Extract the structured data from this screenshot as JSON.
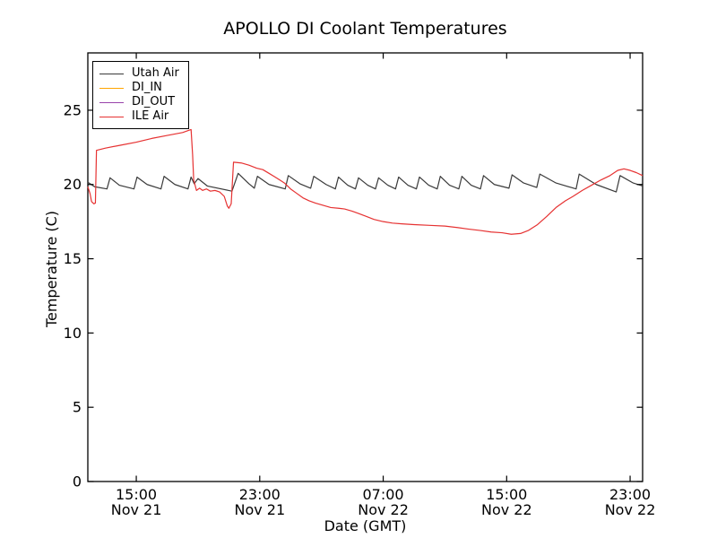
{
  "figure": {
    "background_color": "#ffffff",
    "axes_border_color": "#000000",
    "text_color": "#000000"
  },
  "chart_data": {
    "type": "line",
    "title": "APOLLO DI Coolant Temperatures",
    "xlabel": "Date (GMT)",
    "ylabel": "Temperature (C)",
    "grid": false,
    "legend_position": "upper left",
    "x_unit": "hours from Nov 21 00:00 GMT",
    "xlim": [
      11.86,
      47.81
    ],
    "ylim": [
      0,
      28.86
    ],
    "yticks": [
      0,
      5,
      10,
      15,
      20,
      25
    ],
    "xticks": [
      {
        "t": 15,
        "time": "15:00",
        "date": "Nov 21"
      },
      {
        "t": 23,
        "time": "23:00",
        "date": "Nov 21"
      },
      {
        "t": 31,
        "time": "07:00",
        "date": "Nov 22"
      },
      {
        "t": 39,
        "time": "15:00",
        "date": "Nov 22"
      },
      {
        "t": 47,
        "time": "23:00",
        "date": "Nov 22"
      }
    ],
    "series": [
      {
        "name": "Utah Air",
        "color": "#3a3a3a",
        "points": [
          [
            11.86,
            20.15
          ],
          [
            12.3,
            19.85
          ],
          [
            13.1,
            19.7
          ],
          [
            13.3,
            20.45
          ],
          [
            13.9,
            19.95
          ],
          [
            14.85,
            19.7
          ],
          [
            15.05,
            20.5
          ],
          [
            15.7,
            20.0
          ],
          [
            16.6,
            19.7
          ],
          [
            16.8,
            20.55
          ],
          [
            17.5,
            20.0
          ],
          [
            18.35,
            19.7
          ],
          [
            18.55,
            20.5
          ],
          [
            18.75,
            20.05
          ],
          [
            19.0,
            20.4
          ],
          [
            19.6,
            19.9
          ],
          [
            21.2,
            19.55
          ],
          [
            21.6,
            20.75
          ],
          [
            22.3,
            20.05
          ],
          [
            22.65,
            19.75
          ],
          [
            22.85,
            20.55
          ],
          [
            23.6,
            20.0
          ],
          [
            24.65,
            19.7
          ],
          [
            24.85,
            20.6
          ],
          [
            25.6,
            20.05
          ],
          [
            26.3,
            19.75
          ],
          [
            26.5,
            20.55
          ],
          [
            27.3,
            20.0
          ],
          [
            27.9,
            19.7
          ],
          [
            28.1,
            20.5
          ],
          [
            28.7,
            19.95
          ],
          [
            29.2,
            19.7
          ],
          [
            29.4,
            20.45
          ],
          [
            30.0,
            19.95
          ],
          [
            30.5,
            19.7
          ],
          [
            30.7,
            20.45
          ],
          [
            31.3,
            19.95
          ],
          [
            31.8,
            19.7
          ],
          [
            32.0,
            20.5
          ],
          [
            32.6,
            19.95
          ],
          [
            33.15,
            19.7
          ],
          [
            33.35,
            20.5
          ],
          [
            33.95,
            19.95
          ],
          [
            34.5,
            19.7
          ],
          [
            34.7,
            20.55
          ],
          [
            35.3,
            19.95
          ],
          [
            35.9,
            19.7
          ],
          [
            36.1,
            20.55
          ],
          [
            36.7,
            19.95
          ],
          [
            37.3,
            19.7
          ],
          [
            37.5,
            20.6
          ],
          [
            38.2,
            20.0
          ],
          [
            39.15,
            19.75
          ],
          [
            39.35,
            20.65
          ],
          [
            40.1,
            20.1
          ],
          [
            40.95,
            19.8
          ],
          [
            41.15,
            20.7
          ],
          [
            42.2,
            20.1
          ],
          [
            43.5,
            19.7
          ],
          [
            43.7,
            20.7
          ],
          [
            44.8,
            20.0
          ],
          [
            46.1,
            19.5
          ],
          [
            46.35,
            20.6
          ],
          [
            47.2,
            20.1
          ],
          [
            47.81,
            19.9
          ]
        ]
      },
      {
        "name": "DI_IN",
        "color": "#ffa500",
        "points": []
      },
      {
        "name": "DI_OUT",
        "color": "#9944aa",
        "points": []
      },
      {
        "name": "ILE Air",
        "color": "#e63232",
        "points": [
          [
            11.86,
            19.85
          ],
          [
            12.0,
            19.4
          ],
          [
            12.1,
            18.85
          ],
          [
            12.25,
            18.7
          ],
          [
            12.35,
            18.75
          ],
          [
            12.42,
            22.3
          ],
          [
            13.0,
            22.45
          ],
          [
            14.0,
            22.65
          ],
          [
            15.0,
            22.85
          ],
          [
            16.0,
            23.1
          ],
          [
            17.0,
            23.3
          ],
          [
            18.0,
            23.5
          ],
          [
            18.55,
            23.7
          ],
          [
            18.65,
            22.0
          ],
          [
            18.72,
            20.3
          ],
          [
            18.9,
            19.6
          ],
          [
            19.1,
            19.75
          ],
          [
            19.3,
            19.6
          ],
          [
            19.55,
            19.7
          ],
          [
            19.8,
            19.55
          ],
          [
            20.1,
            19.6
          ],
          [
            20.4,
            19.5
          ],
          [
            20.7,
            19.2
          ],
          [
            20.9,
            18.55
          ],
          [
            21.0,
            18.4
          ],
          [
            21.15,
            18.7
          ],
          [
            21.3,
            21.5
          ],
          [
            21.8,
            21.45
          ],
          [
            22.3,
            21.3
          ],
          [
            22.8,
            21.1
          ],
          [
            23.2,
            21.0
          ],
          [
            23.6,
            20.75
          ],
          [
            24.0,
            20.5
          ],
          [
            24.3,
            20.3
          ],
          [
            24.6,
            20.1
          ],
          [
            25.0,
            19.7
          ],
          [
            25.4,
            19.4
          ],
          [
            25.8,
            19.1
          ],
          [
            26.2,
            18.9
          ],
          [
            26.6,
            18.75
          ],
          [
            27.1,
            18.6
          ],
          [
            27.6,
            18.45
          ],
          [
            28.1,
            18.4
          ],
          [
            28.5,
            18.35
          ],
          [
            29.0,
            18.2
          ],
          [
            29.4,
            18.05
          ],
          [
            29.9,
            17.85
          ],
          [
            30.4,
            17.65
          ],
          [
            31.0,
            17.5
          ],
          [
            31.6,
            17.4
          ],
          [
            32.2,
            17.35
          ],
          [
            33.0,
            17.3
          ],
          [
            34.0,
            17.25
          ],
          [
            35.0,
            17.2
          ],
          [
            35.8,
            17.1
          ],
          [
            36.5,
            17.0
          ],
          [
            37.3,
            16.9
          ],
          [
            38.0,
            16.8
          ],
          [
            38.7,
            16.75
          ],
          [
            39.3,
            16.65
          ],
          [
            39.9,
            16.7
          ],
          [
            40.4,
            16.9
          ],
          [
            41.0,
            17.3
          ],
          [
            41.6,
            17.85
          ],
          [
            42.2,
            18.45
          ],
          [
            42.8,
            18.9
          ],
          [
            43.3,
            19.2
          ],
          [
            43.9,
            19.6
          ],
          [
            44.5,
            19.95
          ],
          [
            45.1,
            20.3
          ],
          [
            45.7,
            20.6
          ],
          [
            46.2,
            20.95
          ],
          [
            46.6,
            21.05
          ],
          [
            47.0,
            20.95
          ],
          [
            47.4,
            20.8
          ],
          [
            47.81,
            20.6
          ]
        ]
      }
    ]
  }
}
